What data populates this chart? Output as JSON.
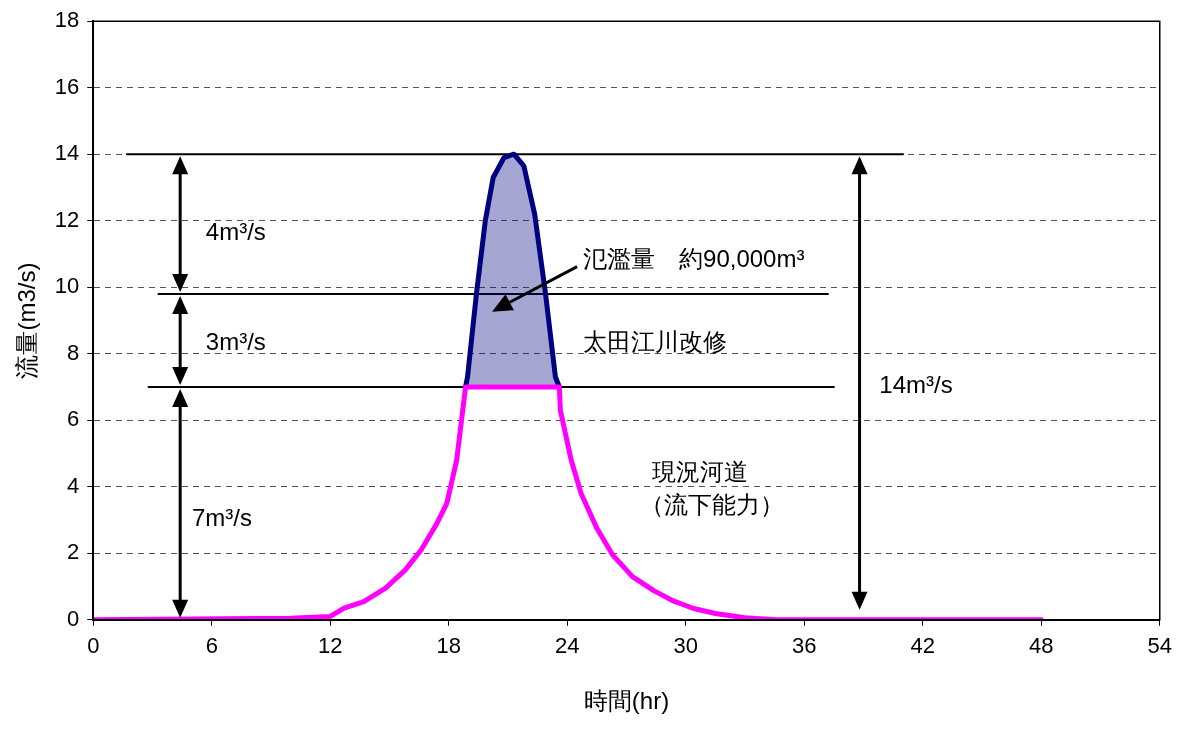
{
  "chart_data": {
    "type": "line",
    "xlabel": "時間(hr)",
    "ylabel": "流量(m3/s)",
    "xlim": [
      0,
      54
    ],
    "xticks": [
      0,
      6,
      12,
      18,
      24,
      30,
      36,
      42,
      48,
      54
    ],
    "ylim": [
      0,
      18
    ],
    "yticks": [
      0,
      2,
      4,
      6,
      8,
      10,
      12,
      14,
      16,
      18
    ],
    "grid": "y",
    "legend": false,
    "series": [
      {
        "color": "#ff00ff",
        "x": [
          0,
          10,
          12,
          12.7,
          13.7,
          14.8,
          15.8,
          16.6,
          17.4,
          17.9,
          18.4,
          18.85,
          23.6,
          23.65,
          24.2,
          24.7,
          25.5,
          26.3,
          27.3,
          28.4,
          29.4,
          30.4,
          31.5,
          33,
          34.6,
          48
        ],
        "values": [
          0,
          0.05,
          0.1,
          0.35,
          0.55,
          0.95,
          1.5,
          2.1,
          2.9,
          3.5,
          4.8,
          7,
          7,
          6.3,
          4.8,
          3.8,
          2.75,
          1.95,
          1.3,
          0.87,
          0.56,
          0.34,
          0.19,
          0.06,
          0,
          0
        ]
      },
      {
        "type": "area",
        "color": "#000080",
        "x": [
          18.85,
          18.95,
          19.4,
          19.85,
          20.25,
          20.8,
          21.3,
          21.8,
          22.35,
          22.9,
          23.4,
          23.6
        ],
        "values": [
          7,
          7.3,
          9.8,
          12,
          13.3,
          13.9,
          14,
          13.65,
          12.2,
          9.8,
          7.3,
          7
        ]
      },
      {
        "color": "#000000",
        "x": [
          1.7,
          41
        ],
        "values": [
          14,
          14
        ]
      },
      {
        "color": "#000000",
        "x": [
          3.3,
          37.2
        ],
        "values": [
          9.8,
          9.8
        ]
      },
      {
        "color": "#000000",
        "x": [
          2.8,
          37.5
        ],
        "values": [
          7,
          7
        ]
      }
    ],
    "annotations": [
      "4m³/s",
      "3m³/s",
      "7m³/s",
      "14m³/s",
      "氾濫量　約90,000m³",
      "太田江川改修",
      "現況河道",
      "（流下能力）"
    ]
  }
}
